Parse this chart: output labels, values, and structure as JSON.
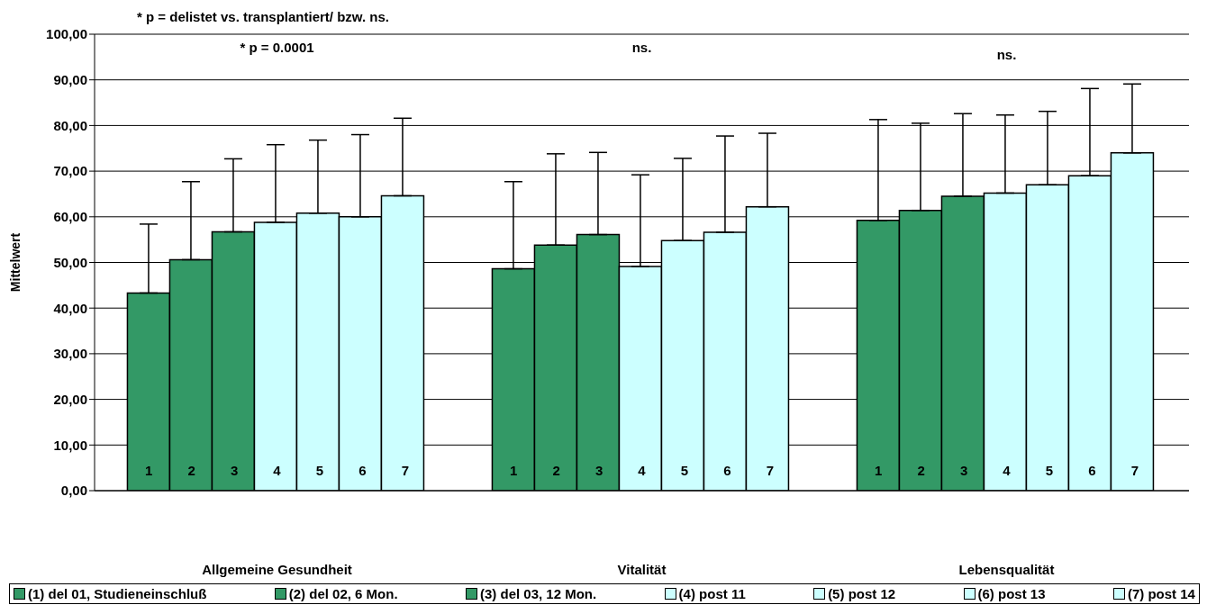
{
  "chart_data": {
    "type": "bar",
    "title": "* p = delistet vs. transplantiert/ bzw. ns.",
    "ylabel": "Mittelwert",
    "categories": [
      "Allgemeine Gesundheit",
      "Vitalität",
      "Lebensqualität"
    ],
    "series": [
      {
        "name": "(1) del 01, Studieneinschluß",
        "color": "#339966",
        "values": [
          43.3,
          48.6,
          59.2
        ],
        "errors": [
          [
            43.3,
            58.4
          ],
          [
            48.6,
            67.7
          ],
          [
            59.2,
            81.3
          ]
        ]
      },
      {
        "name": "(2) del 02, 6 Mon.",
        "color": "#339966",
        "values": [
          50.6,
          53.8,
          61.4
        ],
        "errors": [
          [
            50.6,
            67.7
          ],
          [
            53.8,
            73.8
          ],
          [
            61.4,
            80.5
          ]
        ]
      },
      {
        "name": "(3) del 03, 12 Mon.",
        "color": "#339966",
        "values": [
          56.7,
          56.1,
          64.5
        ],
        "errors": [
          [
            56.7,
            72.7
          ],
          [
            56.1,
            74.1
          ],
          [
            64.5,
            82.6
          ]
        ]
      },
      {
        "name": "(4) post 11",
        "color": "#ccffff",
        "values": [
          58.8,
          49.1,
          65.2
        ],
        "errors": [
          [
            58.8,
            75.8
          ],
          [
            49.1,
            69.2
          ],
          [
            65.2,
            82.3
          ]
        ]
      },
      {
        "name": "(5) post 12",
        "color": "#ccffff",
        "values": [
          60.8,
          54.8,
          67.0
        ],
        "errors": [
          [
            60.8,
            76.8
          ],
          [
            54.8,
            72.8
          ],
          [
            67.0,
            83.1
          ]
        ]
      },
      {
        "name": "(6) post 13",
        "color": "#ccffff",
        "values": [
          60.0,
          56.6,
          69.0
        ],
        "errors": [
          [
            60.0,
            78.0
          ],
          [
            56.6,
            77.7
          ],
          [
            69.0,
            88.1
          ]
        ]
      },
      {
        "name": "(7) post 14",
        "color": "#ccffff",
        "values": [
          64.6,
          62.2,
          74.0
        ],
        "errors": [
          [
            64.6,
            81.6
          ],
          [
            62.2,
            78.3
          ],
          [
            74.0,
            89.1
          ]
        ]
      }
    ],
    "annotations": [
      "* p = 0.0001",
      "1",
      "2",
      "3",
      "4",
      "5",
      "6",
      "7",
      "ns.",
      "1",
      "2",
      "3",
      "4",
      "5",
      "6",
      "7",
      "ns.",
      "1",
      "2",
      "3",
      "4",
      "5",
      "6",
      "7"
    ],
    "ylim": [
      0,
      100
    ],
    "yticks": [
      {
        "value": 0,
        "label": "0,00"
      },
      {
        "value": 10,
        "label": "10,00"
      },
      {
        "value": 20,
        "label": "20,00"
      },
      {
        "value": 30,
        "label": "30,00"
      },
      {
        "value": 40,
        "label": "40,00"
      },
      {
        "value": 50,
        "label": "50,00"
      },
      {
        "value": 60,
        "label": "60,00"
      },
      {
        "value": 70,
        "label": "70,00"
      },
      {
        "value": 80,
        "label": "80,00"
      },
      {
        "value": 90,
        "label": "90,00"
      },
      {
        "value": 100,
        "label": "100,00"
      }
    ],
    "grid": "y",
    "legend": "bottom"
  }
}
